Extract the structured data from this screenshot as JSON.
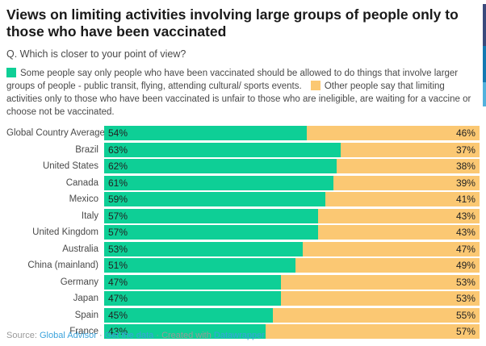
{
  "header": {
    "title": "Views on limiting activities involving large groups of people only to those who have been vaccinated",
    "subtitle": "Q. Which is closer to your point of view?"
  },
  "legend": {
    "items": [
      {
        "color": "#0ecf96",
        "text": "Some people say only people who have been vaccinated should be allowed to do things that involve larger groups of people - public transit, flying, attending cultural/ sports events."
      },
      {
        "color": "#fbc873",
        "text": "Other people say that limiting activities only to those who have been vaccinated is unfair to those who are ineligible, are waiting for a vaccine or choose not be vaccinated."
      }
    ]
  },
  "chart_data": {
    "type": "bar",
    "stacked": true,
    "orientation": "horizontal",
    "title": "Views on limiting activities involving large groups of people only to those who have been vaccinated",
    "value_suffix": "%",
    "xlim": [
      0,
      100
    ],
    "categories": [
      "Global Country Average",
      "Brazil",
      "United States",
      "Canada",
      "Mexico",
      "Italy",
      "United Kingdom",
      "Australia",
      "China (mainland)",
      "Germany",
      "Japan",
      "Spain",
      "France"
    ],
    "series": [
      {
        "name": "Some people say only people who have been vaccinated should be allowed to do things that involve larger groups of people - public transit, flying, attending cultural/ sports events.",
        "color": "#0ecf96",
        "values": [
          54,
          63,
          62,
          61,
          59,
          57,
          57,
          53,
          51,
          47,
          47,
          45,
          43
        ]
      },
      {
        "name": "Other people say that limiting activities only to those who have been vaccinated is unfair to those who are ineligible, are waiting for a vaccine or choose not be vaccinated.",
        "color": "#fbc873",
        "values": [
          46,
          37,
          38,
          39,
          41,
          43,
          43,
          47,
          49,
          53,
          53,
          55,
          57
        ]
      }
    ]
  },
  "footer": {
    "source_label": "Source:",
    "source_link": "Global Advisor",
    "separator": "·",
    "data_link": "Get the data",
    "created_label": "Created with",
    "tool_link": "Datawrapper"
  },
  "edge_strip": {
    "colors": [
      "#3a4a7c",
      "#1479b2",
      "#52b2dd"
    ]
  }
}
